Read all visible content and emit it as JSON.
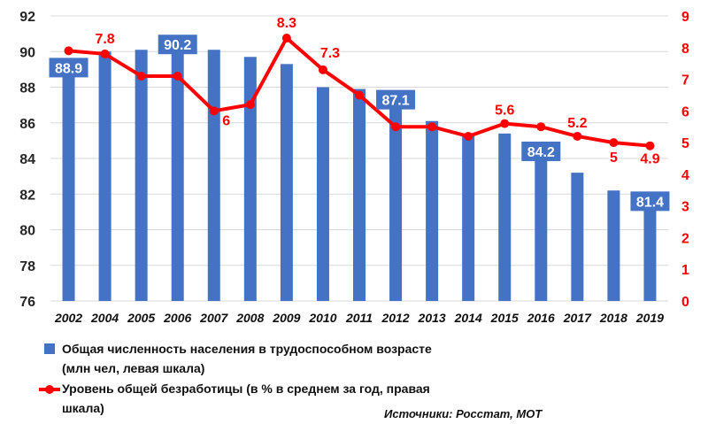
{
  "chart_data": {
    "type": "bar+line",
    "categories": [
      "2002",
      "2004",
      "2005",
      "2006",
      "2007",
      "2008",
      "2009",
      "2010",
      "2011",
      "2012",
      "2013",
      "2014",
      "2015",
      "2016",
      "2017",
      "2018",
      "2019"
    ],
    "series": [
      {
        "name": "Общая численность населения в трудоспособном возрасте (млн чел, левая шкала)",
        "type": "bar",
        "axis": "left",
        "color": "#4472c4",
        "values": [
          88.9,
          90.0,
          90.1,
          90.2,
          90.1,
          89.7,
          89.3,
          88.0,
          87.9,
          87.1,
          86.1,
          85.3,
          85.4,
          84.2,
          83.2,
          82.2,
          81.4
        ],
        "labels": {
          "0": "88.9",
          "3": "90.2",
          "9": "87.1",
          "13": "84.2",
          "16": "81.4"
        }
      },
      {
        "name": "Уровень общей безработицы (в % в среднем за год, правая шкала)",
        "type": "line",
        "axis": "right",
        "color": "#ff0000",
        "values": [
          7.9,
          7.8,
          7.1,
          7.1,
          6.0,
          6.2,
          8.3,
          7.3,
          6.5,
          5.5,
          5.5,
          5.2,
          5.6,
          5.5,
          5.2,
          5.0,
          4.9
        ],
        "labels": {
          "1": "7.8",
          "4": "6",
          "6": "8.3",
          "7": "7.3",
          "12": "5.6",
          "14": "5.2",
          "15": "5",
          "16": "4.9"
        }
      }
    ],
    "y_left": {
      "min": 76,
      "max": 92,
      "ticks": [
        "76",
        "78",
        "80",
        "82",
        "84",
        "86",
        "88",
        "90",
        "92"
      ]
    },
    "y_right": {
      "min": 0,
      "max": 9,
      "ticks": [
        "0",
        "1",
        "2",
        "3",
        "4",
        "5",
        "6",
        "7",
        "8",
        "9"
      ]
    },
    "grid": true,
    "legend": {
      "bar_line1": "Общая численность населения в трудоспособном  возрасте",
      "bar_line2": "(млн чел, левая шкала)",
      "line_line1": "Уровень общей безработицы (в % в среднем за год, правая",
      "line_line2": "шкала)"
    },
    "source": "Источники: Росстат, МОТ"
  }
}
